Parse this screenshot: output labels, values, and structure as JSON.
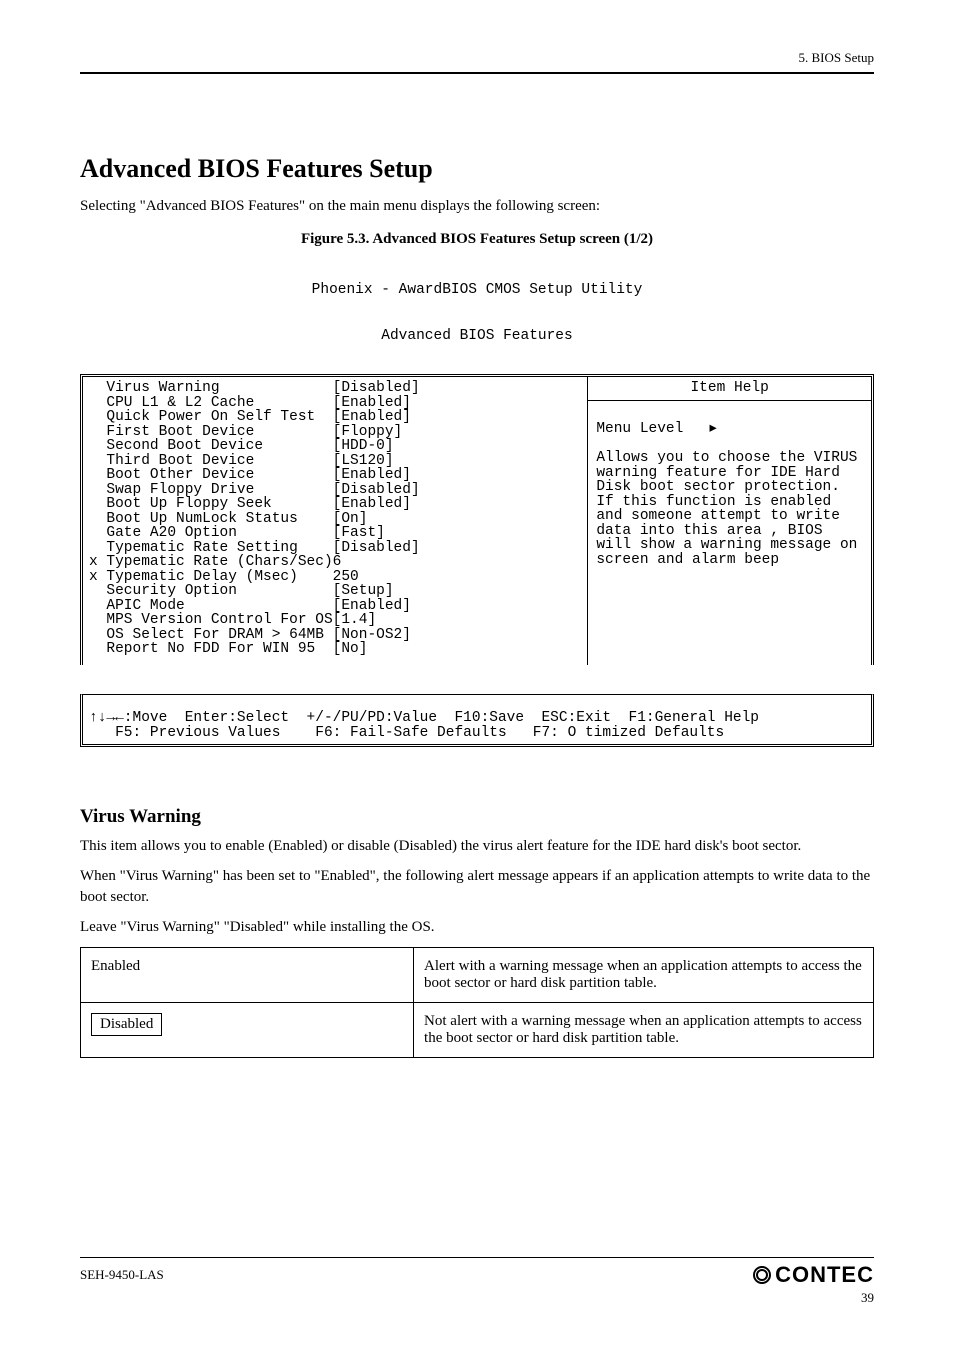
{
  "chapter_line": "5. BIOS Setup",
  "section_title": "Advanced BIOS Features Setup",
  "section_intro": "Selecting \"Advanced BIOS Features\" on the main menu displays the following screen:",
  "figure_caption": "Figure 5.3.    Advanced BIOS Features Setup screen (1/2)",
  "bios": {
    "title_line1": "Phoenix - AwardBIOS CMOS Setup Utility",
    "title_line2": "Advanced BIOS Features",
    "help_title": "Item Help",
    "menu_level_label": "Menu Level",
    "menu_level_arrow": "▸",
    "help_body": "Allows you to choose the VIRUS warning feature for IDE Hard Disk boot sector protection. If this function is enabled and someone attempt to write data into this area , BIOS will show a warning message on screen and alarm beep",
    "items": [
      {
        "prefix": "  ",
        "label": "Virus Warning",
        "value": "[Disabled]"
      },
      {
        "prefix": "  ",
        "label": "CPU L1 & L2 Cache",
        "value": "[Enabled]"
      },
      {
        "prefix": "  ",
        "label": "Quick Power On Self Test",
        "value": "[Enabled]"
      },
      {
        "prefix": "  ",
        "label": "First Boot Device",
        "value": "[Floppy]"
      },
      {
        "prefix": "  ",
        "label": "Second Boot Device",
        "value": "[HDD-0]"
      },
      {
        "prefix": "  ",
        "label": "Third Boot Device",
        "value": "[LS120]"
      },
      {
        "prefix": "  ",
        "label": "Boot Other Device",
        "value": "[Enabled]"
      },
      {
        "prefix": "  ",
        "label": "Swap Floppy Drive",
        "value": "[Disabled]"
      },
      {
        "prefix": "  ",
        "label": "Boot Up Floppy Seek",
        "value": "[Enabled]"
      },
      {
        "prefix": "  ",
        "label": "Boot Up NumLock Status",
        "value": "[On]"
      },
      {
        "prefix": "  ",
        "label": "Gate A20 Option",
        "value": "[Fast]"
      },
      {
        "prefix": "  ",
        "label": "Typematic Rate Setting",
        "value": "[Disabled]"
      },
      {
        "prefix": "x ",
        "label": "Typematic Rate (Chars/Sec)",
        "value": "6"
      },
      {
        "prefix": "x ",
        "label": "Typematic Delay (Msec)",
        "value": "250"
      },
      {
        "prefix": "  ",
        "label": "Security Option",
        "value": "[Setup]"
      },
      {
        "prefix": "  ",
        "label": "APIC Mode",
        "value": "[Enabled]"
      },
      {
        "prefix": "  ",
        "label": "MPS Version Control For OS",
        "value": "[1.4]"
      },
      {
        "prefix": "  ",
        "label": "OS Select For DRAM > 64MB",
        "value": "[Non-OS2]"
      },
      {
        "prefix": "  ",
        "label": "Report No FDD For WIN 95",
        "value": "[No]"
      }
    ],
    "footer_l1": "↑↓→←:Move  Enter:Select  +/-/PU/PD:Value  F10:Save  ESC:Exit  F1:General Help",
    "footer_l2": "   F5: Previous Values    F6: Fail-Safe Defaults   F7: O timized Defaults"
  },
  "sub": {
    "title": "Virus Warning",
    "p1": "This item allows you to enable (Enabled) or disable (Disabled) the virus alert feature for the IDE hard disk's boot sector.",
    "p2": "When \"Virus Warning\" has been set to \"Enabled\", the following alert message appears if an application attempts to write data to the boot sector.",
    "note": "Leave \"Virus Warning\" \"Disabled\" while installing the OS.",
    "table": [
      {
        "k": "Enabled",
        "v": "Alert with a warning message when an application attempts to access the boot sector or hard disk partition table."
      },
      {
        "k_boxed": "Disabled",
        "v": "Not alert with a warning message when an application attempts to access the boot sector or hard disk partition table."
      }
    ]
  },
  "footer": {
    "product": "SEH-9450-LAS",
    "brand": "CONTEC",
    "page": "39"
  }
}
